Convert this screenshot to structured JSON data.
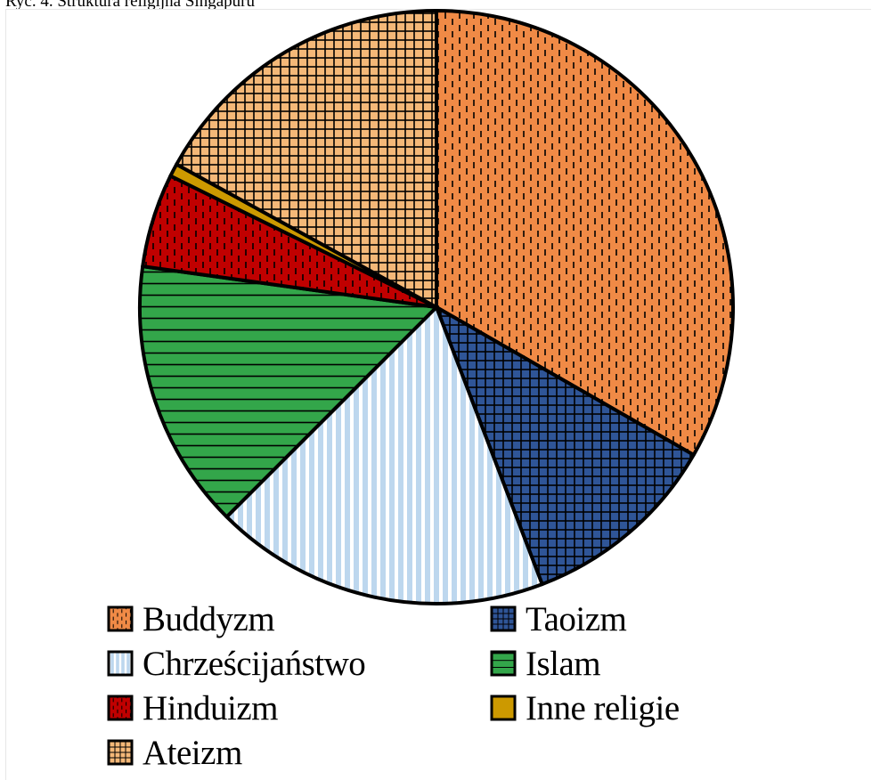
{
  "title": "Ryc. 4. Struktura religijna Singapuru",
  "chart_data": {
    "type": "pie",
    "title": "Ryc. 4. Struktura religijna Singapuru",
    "legend_position": "bottom",
    "start_angle_deg": 0,
    "direction": "clockwise",
    "slices": [
      {
        "label": "Buddyzm",
        "value": 33.3,
        "color": "#f08a46",
        "pattern": "dashed-vertical"
      },
      {
        "label": "Taoizm",
        "value": 10.9,
        "color": "#2f5597",
        "pattern": "grid"
      },
      {
        "label": "Chrześcijaństwo",
        "value": 18.3,
        "color": "#bdd7ee",
        "pattern": "vertical"
      },
      {
        "label": "Islam",
        "value": 14.7,
        "color": "#33a64a",
        "pattern": "horizontal"
      },
      {
        "label": "Hinduizm",
        "value": 5.1,
        "color": "#c00000",
        "pattern": "dashed-vertical"
      },
      {
        "label": "Inne religie",
        "value": 0.7,
        "color": "#cc9900",
        "pattern": "none"
      },
      {
        "label": "Ateizm",
        "value": 17.0,
        "color": "#f4b878",
        "pattern": "grid"
      }
    ]
  }
}
